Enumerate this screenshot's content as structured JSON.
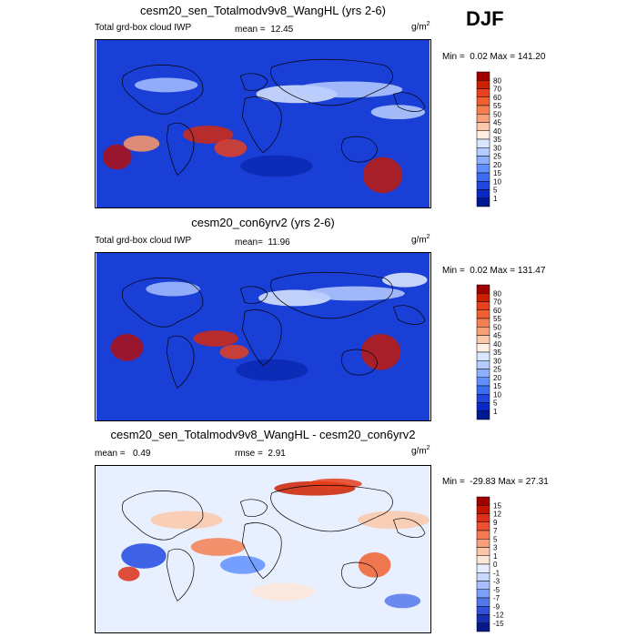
{
  "season": "DJF",
  "chart_data": [
    {
      "type": "heatmap",
      "title": "cesm20_sen_Totalmodv9v8_WangHL (yrs 2-6)",
      "left_label": "Total grd-box cloud IWP",
      "mean_label": "mean =",
      "mean_value": "12.45",
      "units": "g/m",
      "units_sup": "2",
      "min_label": "Min =",
      "min_value": "0.02",
      "max_label": "Max =",
      "max_value": "141.20",
      "levels": [
        "80",
        "70",
        "60",
        "55",
        "50",
        "45",
        "40",
        "35",
        "30",
        "25",
        "20",
        "15",
        "10",
        "5",
        "1"
      ],
      "colors": [
        "#a00000",
        "#cc2000",
        "#e6401c",
        "#f06030",
        "#f48052",
        "#f8a07a",
        "#fcc8aa",
        "#fff0e6",
        "#d8e6ff",
        "#b4ccff",
        "#8cb0ff",
        "#6090ff",
        "#3c6cf0",
        "#2048e0",
        "#0828c8",
        "#001890"
      ]
    },
    {
      "type": "heatmap",
      "title": "cesm20_con6yrv2 (yrs 2-6)",
      "left_label": "Total grd-box cloud IWP",
      "mean_label": "mean=",
      "mean_value": "11.96",
      "units": "g/m",
      "units_sup": "2",
      "min_label": "Min =",
      "min_value": "0.02",
      "max_label": "Max =",
      "max_value": "131.47",
      "levels": [
        "80",
        "70",
        "60",
        "55",
        "50",
        "45",
        "40",
        "35",
        "30",
        "25",
        "20",
        "15",
        "10",
        "5",
        "1"
      ],
      "colors": [
        "#a00000",
        "#cc2000",
        "#e6401c",
        "#f06030",
        "#f48052",
        "#f8a07a",
        "#fcc8aa",
        "#fff0e6",
        "#d8e6ff",
        "#b4ccff",
        "#8cb0ff",
        "#6090ff",
        "#3c6cf0",
        "#2048e0",
        "#0828c8",
        "#001890"
      ]
    },
    {
      "type": "heatmap",
      "title": "cesm20_sen_Totalmodv9v8_WangHL - cesm20_con6yrv2",
      "left_label": "mean =",
      "left_value": "0.49",
      "mean_label": "rmse =",
      "mean_value": "2.91",
      "units": "g/m",
      "units_sup": "2",
      "min_label": "Min =",
      "min_value": "-29.83",
      "max_label": "Max =",
      "max_value": "27.31",
      "levels": [
        "15",
        "12",
        "9",
        "7",
        "5",
        "3",
        "1",
        "0",
        "-1",
        "-3",
        "-5",
        "-7",
        "-9",
        "-12",
        "-15"
      ],
      "colors": [
        "#a00000",
        "#c41400",
        "#dc3018",
        "#ec5230",
        "#f47a52",
        "#f8a07c",
        "#fcc6a8",
        "#fde6d8",
        "#e6eeff",
        "#c8d8ff",
        "#a6c0ff",
        "#7ea0fa",
        "#5478ec",
        "#3050d8",
        "#1830b0",
        "#081888"
      ]
    }
  ]
}
